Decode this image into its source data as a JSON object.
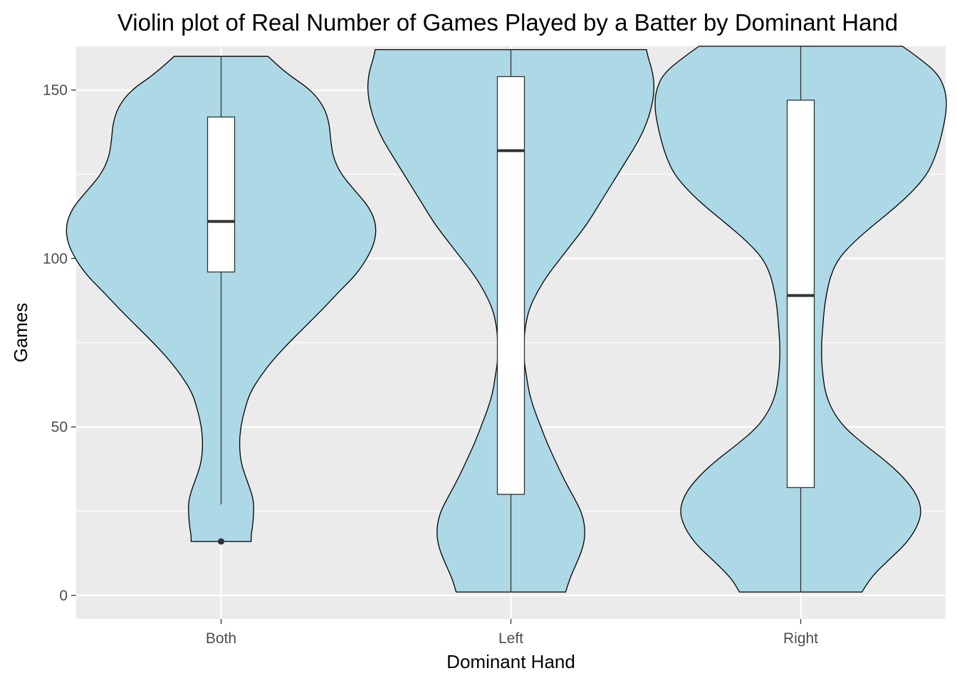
{
  "chart_data": {
    "type": "violin",
    "title": "Violin plot of Real Number of Games Played by a Batter by Dominant Hand",
    "xlabel": "Dominant Hand",
    "ylabel": "Games",
    "categories": [
      "Both",
      "Left",
      "Right"
    ],
    "ylim": [
      -7,
      163
    ],
    "yticks": [
      0,
      50,
      100,
      150
    ],
    "ytick_labels": [
      "0",
      "50",
      "100",
      "150"
    ],
    "grid": true,
    "colors": {
      "panel": "#ebebeb",
      "grid": "#ffffff",
      "violin_fill": "#add8e6",
      "outline": "#000000",
      "box_fill": "#ffffff",
      "median": "#333333",
      "outlier": "#333333"
    },
    "violins": [
      {
        "category": "Both",
        "min": 16,
        "max": 160,
        "profile": [
          [
            16,
            0.23
          ],
          [
            18,
            0.23
          ],
          [
            20,
            0.24
          ],
          [
            24,
            0.25
          ],
          [
            28,
            0.25
          ],
          [
            32,
            0.22
          ],
          [
            36,
            0.18
          ],
          [
            40,
            0.15
          ],
          [
            45,
            0.14
          ],
          [
            50,
            0.15
          ],
          [
            55,
            0.18
          ],
          [
            60,
            0.22
          ],
          [
            65,
            0.3
          ],
          [
            70,
            0.4
          ],
          [
            75,
            0.52
          ],
          [
            80,
            0.65
          ],
          [
            85,
            0.78
          ],
          [
            90,
            0.9
          ],
          [
            95,
            1.03
          ],
          [
            100,
            1.12
          ],
          [
            105,
            1.18
          ],
          [
            110,
            1.19
          ],
          [
            115,
            1.14
          ],
          [
            120,
            1.03
          ],
          [
            125,
            0.92
          ],
          [
            130,
            0.86
          ],
          [
            135,
            0.84
          ],
          [
            140,
            0.83
          ],
          [
            145,
            0.79
          ],
          [
            150,
            0.69
          ],
          [
            155,
            0.5
          ],
          [
            160,
            0.36
          ]
        ],
        "box": {
          "q1": 96,
          "median": 111,
          "q3": 142,
          "whisker_low": 27,
          "whisker_high": 160
        },
        "outliers": [
          16
        ]
      },
      {
        "category": "Left",
        "min": 1,
        "max": 162,
        "profile": [
          [
            1,
            0.42
          ],
          [
            5,
            0.45
          ],
          [
            10,
            0.51
          ],
          [
            15,
            0.56
          ],
          [
            20,
            0.57
          ],
          [
            25,
            0.54
          ],
          [
            30,
            0.47
          ],
          [
            35,
            0.4
          ],
          [
            40,
            0.34
          ],
          [
            45,
            0.28
          ],
          [
            50,
            0.23
          ],
          [
            55,
            0.18
          ],
          [
            60,
            0.14
          ],
          [
            65,
            0.12
          ],
          [
            70,
            0.1
          ],
          [
            75,
            0.1
          ],
          [
            80,
            0.11
          ],
          [
            85,
            0.14
          ],
          [
            90,
            0.2
          ],
          [
            95,
            0.28
          ],
          [
            100,
            0.38
          ],
          [
            105,
            0.48
          ],
          [
            110,
            0.58
          ],
          [
            115,
            0.66
          ],
          [
            120,
            0.74
          ],
          [
            125,
            0.82
          ],
          [
            130,
            0.9
          ],
          [
            135,
            0.98
          ],
          [
            140,
            1.04
          ],
          [
            145,
            1.08
          ],
          [
            150,
            1.1
          ],
          [
            155,
            1.09
          ],
          [
            160,
            1.05
          ],
          [
            162,
            1.04
          ]
        ],
        "box": {
          "q1": 30,
          "median": 132,
          "q3": 154,
          "whisker_low": 1,
          "whisker_high": 162
        },
        "outliers": []
      },
      {
        "category": "Right",
        "min": 1,
        "max": 163,
        "profile": [
          [
            1,
            0.47
          ],
          [
            5,
            0.53
          ],
          [
            10,
            0.66
          ],
          [
            15,
            0.8
          ],
          [
            20,
            0.89
          ],
          [
            25,
            0.93
          ],
          [
            30,
            0.89
          ],
          [
            35,
            0.79
          ],
          [
            40,
            0.65
          ],
          [
            45,
            0.48
          ],
          [
            50,
            0.33
          ],
          [
            55,
            0.24
          ],
          [
            60,
            0.19
          ],
          [
            65,
            0.17
          ],
          [
            70,
            0.16
          ],
          [
            75,
            0.16
          ],
          [
            80,
            0.17
          ],
          [
            85,
            0.18
          ],
          [
            90,
            0.2
          ],
          [
            95,
            0.23
          ],
          [
            100,
            0.29
          ],
          [
            105,
            0.41
          ],
          [
            110,
            0.56
          ],
          [
            115,
            0.72
          ],
          [
            120,
            0.86
          ],
          [
            125,
            0.97
          ],
          [
            130,
            1.03
          ],
          [
            135,
            1.07
          ],
          [
            140,
            1.1
          ],
          [
            145,
            1.12
          ],
          [
            150,
            1.11
          ],
          [
            155,
            1.05
          ],
          [
            160,
            0.89
          ],
          [
            163,
            0.78
          ]
        ],
        "box": {
          "q1": 32,
          "median": 89,
          "q3": 147,
          "whisker_low": 1,
          "whisker_high": 163
        },
        "outliers": []
      }
    ]
  }
}
